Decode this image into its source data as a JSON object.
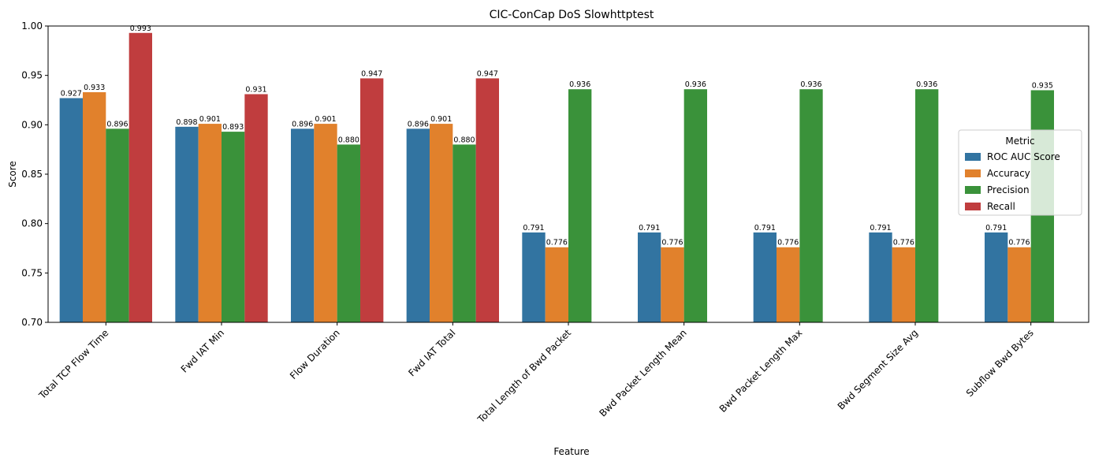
{
  "chart_data": {
    "type": "bar",
    "title": "CIC-ConCap DoS Slowhttptest",
    "xlabel": "Feature",
    "ylabel": "Score",
    "ylim": [
      0.7,
      1.0
    ],
    "yticks": [
      "0.70",
      "0.75",
      "0.80",
      "0.85",
      "0.90",
      "0.95",
      "1.00"
    ],
    "grid": false,
    "legend_title": "Metric",
    "legend_position": "center-right",
    "categories": [
      "Total TCP Flow Time",
      "Fwd IAT Min",
      "Flow Duration",
      "Fwd IAT Total",
      "Total Length of Bwd Packet",
      "Bwd Packet Length Mean",
      "Bwd Packet Length Max",
      "Bwd Segment Size Avg",
      "Subflow Bwd Bytes"
    ],
    "series": [
      {
        "name": "ROC AUC Score",
        "color": "#3274a1",
        "values": [
          0.927,
          0.898,
          0.896,
          0.896,
          0.791,
          0.791,
          0.791,
          0.791,
          0.791
        ],
        "labels": [
          "0.927",
          "0.898",
          "0.896",
          "0.896",
          "0.791",
          "0.791",
          "0.791",
          "0.791",
          "0.791"
        ]
      },
      {
        "name": "Accuracy",
        "color": "#e1812c",
        "values": [
          0.933,
          0.901,
          0.901,
          0.901,
          0.776,
          0.776,
          0.776,
          0.776,
          0.776
        ],
        "labels": [
          "0.933",
          "0.901",
          "0.901",
          "0.901",
          "0.776",
          "0.776",
          "0.776",
          "0.776",
          "0.776"
        ]
      },
      {
        "name": "Precision",
        "color": "#3a923a",
        "values": [
          0.896,
          0.893,
          0.88,
          0.88,
          0.936,
          0.936,
          0.936,
          0.936,
          0.935
        ],
        "labels": [
          "0.896",
          "0.893",
          "0.880",
          "0.880",
          "0.936",
          "0.936",
          "0.936",
          "0.936",
          "0.935"
        ]
      },
      {
        "name": "Recall",
        "color": "#c03d3e",
        "values": [
          0.993,
          0.931,
          0.947,
          0.947,
          null,
          null,
          null,
          null,
          null
        ],
        "labels": [
          "0.993",
          "0.931",
          "0.947",
          "0.947",
          null,
          null,
          null,
          null,
          null
        ]
      }
    ]
  }
}
